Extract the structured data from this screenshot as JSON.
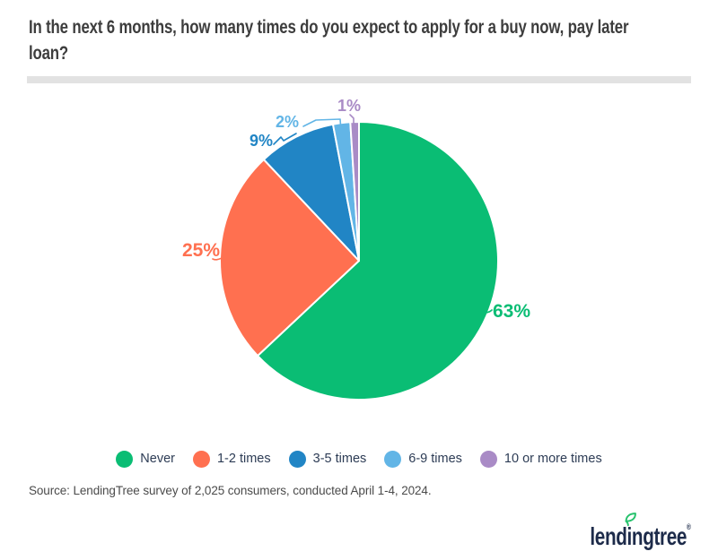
{
  "header": {
    "title_line1": "In the next 6 months, how many times do you expect to apply for a buy now, pay later",
    "title_line2": "loan?"
  },
  "chart_data": {
    "type": "pie",
    "title": "In the next 6 months, how many times do you expect to apply for a buy now, pay later loan?",
    "categories": [
      "Never",
      "1-2 times",
      "3-5 times",
      "6-9 times",
      "10 or more times"
    ],
    "values": [
      63,
      25,
      9,
      2,
      1
    ],
    "slice_labels": [
      "63%",
      "25%",
      "9%",
      "2%",
      "1%"
    ],
    "colors": [
      "#0abd74",
      "#ff7050",
      "#2185c5",
      "#62b5e6",
      "#a98bc6"
    ],
    "start_angle_deg": 0,
    "direction": "clockwise",
    "legend_position": "bottom",
    "label_style": "outside-with-leader-lines"
  },
  "source": {
    "text": "Source: LendingTree survey of 2,025 consumers, conducted April 1-4, 2024."
  },
  "branding": {
    "logo_text": "lendingtree",
    "registered_mark": "®",
    "logo_color": "#1d2b4a",
    "leaf_color": "#27c26d"
  },
  "style": {
    "divider_color": "#e2e2e2",
    "title_color": "#3d3d3d",
    "legend_text_color": "#2d3c55",
    "source_text_color": "#4b4b4b",
    "background": "#ffffff"
  }
}
